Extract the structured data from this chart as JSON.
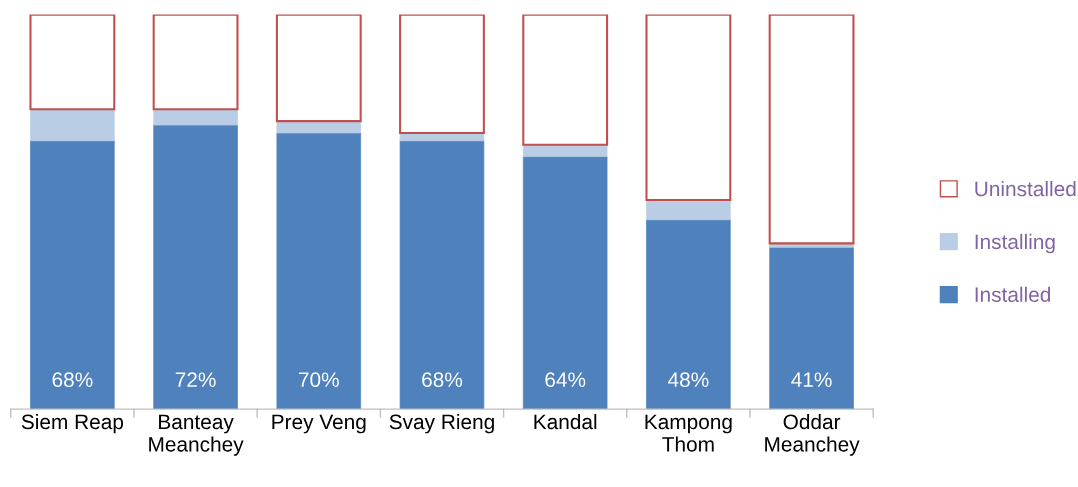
{
  "chart_data": {
    "type": "bar",
    "stacked": true,
    "ylim": [
      0,
      100
    ],
    "tick_labels": "x",
    "grid": false,
    "legend": "right",
    "categories": [
      "Siem Reap",
      "Banteay\nMeanchey",
      "Prey Veng",
      "Svay Rieng",
      "Kandal",
      "Kampong\nThom",
      "Oddar\nMeanchey"
    ],
    "series": [
      {
        "name": "Installed",
        "color": "#4f81bd",
        "values": [
          68,
          72,
          70,
          68,
          64,
          48,
          41
        ],
        "value_labels": [
          "68%",
          "72%",
          "70%",
          "68%",
          "64%",
          "48%",
          "41%"
        ]
      },
      {
        "name": "Installing",
        "color": "#b9cde5",
        "values": [
          8,
          4,
          3,
          2,
          3,
          5,
          1
        ]
      },
      {
        "name": "Uninstalled",
        "color": "#c0504d",
        "line_style": "solid",
        "values": [
          24,
          24,
          27,
          30,
          33,
          47,
          58
        ]
      }
    ]
  }
}
